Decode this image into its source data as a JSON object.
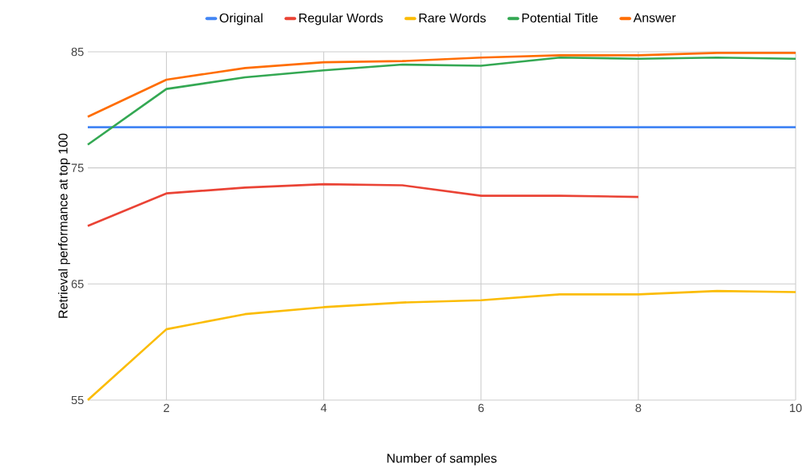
{
  "chart_data": {
    "type": "line",
    "xlabel": "Number of samples",
    "ylabel": "Retrieval performance at top 100",
    "x": [
      1,
      2,
      3,
      4,
      5,
      6,
      7,
      8,
      9,
      10
    ],
    "series": [
      {
        "name": "Original",
        "color": "#4285f4",
        "values": [
          78.5,
          78.5,
          78.5,
          78.5,
          78.5,
          78.5,
          78.5,
          78.5,
          78.5,
          78.5
        ]
      },
      {
        "name": "Regular Words",
        "color": "#ea4335",
        "values": [
          70.0,
          72.8,
          73.3,
          73.6,
          73.5,
          72.6,
          72.6,
          72.5,
          null,
          null
        ]
      },
      {
        "name": "Rare Words",
        "color": "#fbbc04",
        "values": [
          55.0,
          61.1,
          62.4,
          63.0,
          63.4,
          63.6,
          64.1,
          64.1,
          64.4,
          64.3
        ]
      },
      {
        "name": "Potential Title",
        "color": "#34a853",
        "values": [
          77.0,
          81.8,
          82.8,
          83.4,
          83.9,
          83.8,
          84.5,
          84.4,
          84.5,
          84.4
        ]
      },
      {
        "name": "Answer",
        "color": "#ff6d01",
        "values": [
          79.4,
          82.6,
          83.6,
          84.1,
          84.2,
          84.5,
          84.7,
          84.7,
          84.9,
          84.9
        ]
      }
    ],
    "xlim": [
      1,
      10
    ],
    "xticks": [
      2,
      4,
      6,
      8,
      10
    ],
    "ylim": [
      55,
      85
    ],
    "yticks": [
      55,
      65,
      75,
      85
    ],
    "grid": true,
    "legend": "top",
    "marker": "none",
    "line_style": "solid"
  }
}
